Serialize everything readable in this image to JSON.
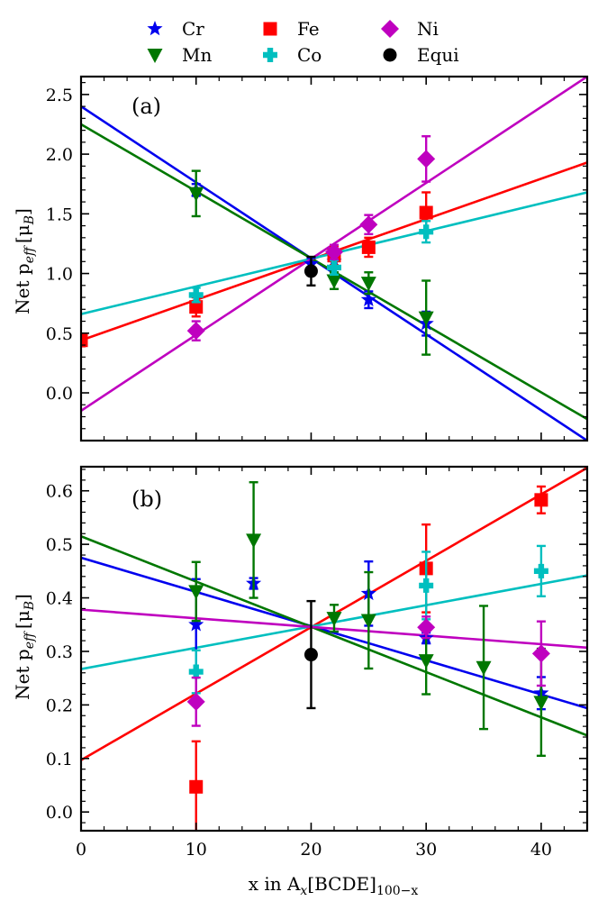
{
  "chart_data": [
    {
      "type": "scatter",
      "panel_label": "(a)",
      "xlim": [
        0,
        44
      ],
      "ylim": [
        -0.4,
        2.65
      ],
      "xticks": [
        0,
        10,
        20,
        30,
        40
      ],
      "yticks": [
        0.0,
        0.5,
        1.0,
        1.5,
        2.0,
        2.5
      ],
      "ytick_labels": [
        "0.0",
        "0.5",
        "1.0",
        "1.5",
        "2.0",
        "2.5"
      ],
      "xtick_labels_visible": false,
      "ylabel_text": "Net p",
      "ylabel_sub": "eff",
      "ylabel_unit": "[μ",
      "ylabel_unit_sub": "B",
      "ylabel_close": "]",
      "series": [
        {
          "name": "Cr",
          "marker": "star",
          "color": "#0000ee",
          "points": [
            [
              10,
              1.7,
              0.05
            ],
            [
              20,
              1.08,
              0.05
            ],
            [
              22,
              1.1,
              0.05
            ],
            [
              25,
              0.78,
              0.07
            ],
            [
              30,
              0.58,
              0.1
            ]
          ],
          "fit": [
            [
              0,
              2.4
            ],
            [
              44,
              -0.4
            ]
          ]
        },
        {
          "name": "Mn",
          "marker": "triangle-down",
          "color": "#007700",
          "points": [
            [
              10,
              1.67,
              0.19
            ],
            [
              22,
              0.94,
              0.07
            ],
            [
              25,
              0.92,
              0.09
            ],
            [
              30,
              0.63,
              0.31
            ]
          ],
          "fit": [
            [
              0,
              2.25
            ],
            [
              44,
              -0.22
            ]
          ]
        },
        {
          "name": "Fe",
          "marker": "square",
          "color": "#ff0000",
          "points": [
            [
              0,
              0.44,
              0.05
            ],
            [
              10,
              0.72,
              0.08
            ],
            [
              22,
              1.15,
              0.08
            ],
            [
              25,
              1.22,
              0.08
            ],
            [
              30,
              1.51,
              0.17
            ]
          ],
          "fit": [
            [
              0,
              0.44
            ],
            [
              44,
              1.93
            ]
          ]
        },
        {
          "name": "Co",
          "marker": "plus",
          "color": "#00bfbf",
          "points": [
            [
              10,
              0.82,
              0.06
            ],
            [
              22,
              1.05,
              0.06
            ],
            [
              30,
              1.35,
              0.09
            ]
          ],
          "fit": [
            [
              0,
              0.66
            ],
            [
              44,
              1.68
            ]
          ]
        },
        {
          "name": "Ni",
          "marker": "diamond",
          "color": "#bf00bf",
          "points": [
            [
              10,
              0.52,
              0.08
            ],
            [
              22,
              1.18,
              0.06
            ],
            [
              25,
              1.41,
              0.08
            ],
            [
              30,
              1.96,
              0.19
            ]
          ],
          "fit": [
            [
              0,
              -0.15
            ],
            [
              44,
              2.65
            ]
          ]
        },
        {
          "name": "Equi",
          "marker": "circle",
          "color": "#000000",
          "points": [
            [
              20,
              1.02,
              0.12
            ]
          ],
          "fit": null
        }
      ]
    },
    {
      "type": "scatter",
      "panel_label": "(b)",
      "xlim": [
        0,
        44
      ],
      "ylim": [
        -0.035,
        0.645
      ],
      "xticks": [
        0,
        10,
        20,
        30,
        40
      ],
      "xtick_labels": [
        "0",
        "10",
        "20",
        "30",
        "40"
      ],
      "yticks": [
        0.0,
        0.1,
        0.2,
        0.3,
        0.4,
        0.5,
        0.6
      ],
      "ytick_labels": [
        "0.0",
        "0.1",
        "0.2",
        "0.3",
        "0.4",
        "0.5",
        "0.6"
      ],
      "xtick_labels_visible": true,
      "ylabel_text": "Net p",
      "ylabel_sub": "eff",
      "ylabel_unit": "[μ",
      "ylabel_unit_sub": "B",
      "ylabel_close": "]",
      "series": [
        {
          "name": "Cr",
          "marker": "star",
          "color": "#0000ee",
          "points": [
            [
              10,
              0.35,
              0.085
            ],
            [
              15,
              0.427,
              0.01
            ],
            [
              25,
              0.408,
              0.06
            ],
            [
              30,
              0.325,
              0.01
            ],
            [
              40,
              0.222,
              0.03
            ]
          ],
          "fit": [
            [
              0,
              0.475
            ],
            [
              44,
              0.194
            ]
          ]
        },
        {
          "name": "Mn",
          "marker": "triangle-down",
          "color": "#007700",
          "points": [
            [
              10,
              0.412,
              0.055
            ],
            [
              15,
              0.508,
              0.108
            ],
            [
              22,
              0.362,
              0.025
            ],
            [
              25,
              0.358,
              0.09
            ],
            [
              30,
              0.283,
              0.063
            ],
            [
              35,
              0.27,
              0.115
            ],
            [
              40,
              0.205,
              0.1
            ]
          ],
          "fit": [
            [
              0,
              0.515
            ],
            [
              44,
              0.143
            ]
          ]
        },
        {
          "name": "Fe",
          "marker": "square",
          "color": "#ff0000",
          "points": [
            [
              10,
              0.047,
              0.085
            ],
            [
              30,
              0.455,
              0.082
            ],
            [
              40,
              0.583,
              0.025
            ]
          ],
          "fit": [
            [
              0,
              0.097
            ],
            [
              44,
              0.643
            ]
          ]
        },
        {
          "name": "Co",
          "marker": "plus",
          "color": "#00bfbf",
          "points": [
            [
              10,
              0.262,
              0.04
            ],
            [
              30,
              0.423,
              0.063
            ],
            [
              40,
              0.45,
              0.047
            ]
          ],
          "fit": [
            [
              0,
              0.267
            ],
            [
              44,
              0.442
            ]
          ]
        },
        {
          "name": "Ni",
          "marker": "diamond",
          "color": "#bf00bf",
          "points": [
            [
              10,
              0.206,
              0.045
            ],
            [
              30,
              0.345,
              0.02
            ],
            [
              40,
              0.296,
              0.06
            ]
          ],
          "fit": [
            [
              0,
              0.378
            ],
            [
              44,
              0.307
            ]
          ]
        },
        {
          "name": "Equi",
          "marker": "circle",
          "color": "#000000",
          "points": [
            [
              20,
              0.294,
              0.1
            ]
          ],
          "fit": null
        }
      ]
    }
  ],
  "legend": {
    "position": "top",
    "entries": [
      {
        "label": "Cr",
        "marker": "star",
        "color": "#0000ee"
      },
      {
        "label": "Fe",
        "marker": "square",
        "color": "#ff0000"
      },
      {
        "label": "Ni",
        "marker": "diamond",
        "color": "#bf00bf"
      },
      {
        "label": "Mn",
        "marker": "triangle-down",
        "color": "#007700"
      },
      {
        "label": "Co",
        "marker": "plus",
        "color": "#00bfbf"
      },
      {
        "label": "Equi",
        "marker": "circle",
        "color": "#000000"
      }
    ]
  },
  "xlabel": {
    "text": "x in A",
    "sub1": "x",
    "middle": "[BCDE]",
    "sub2": "100−x"
  }
}
